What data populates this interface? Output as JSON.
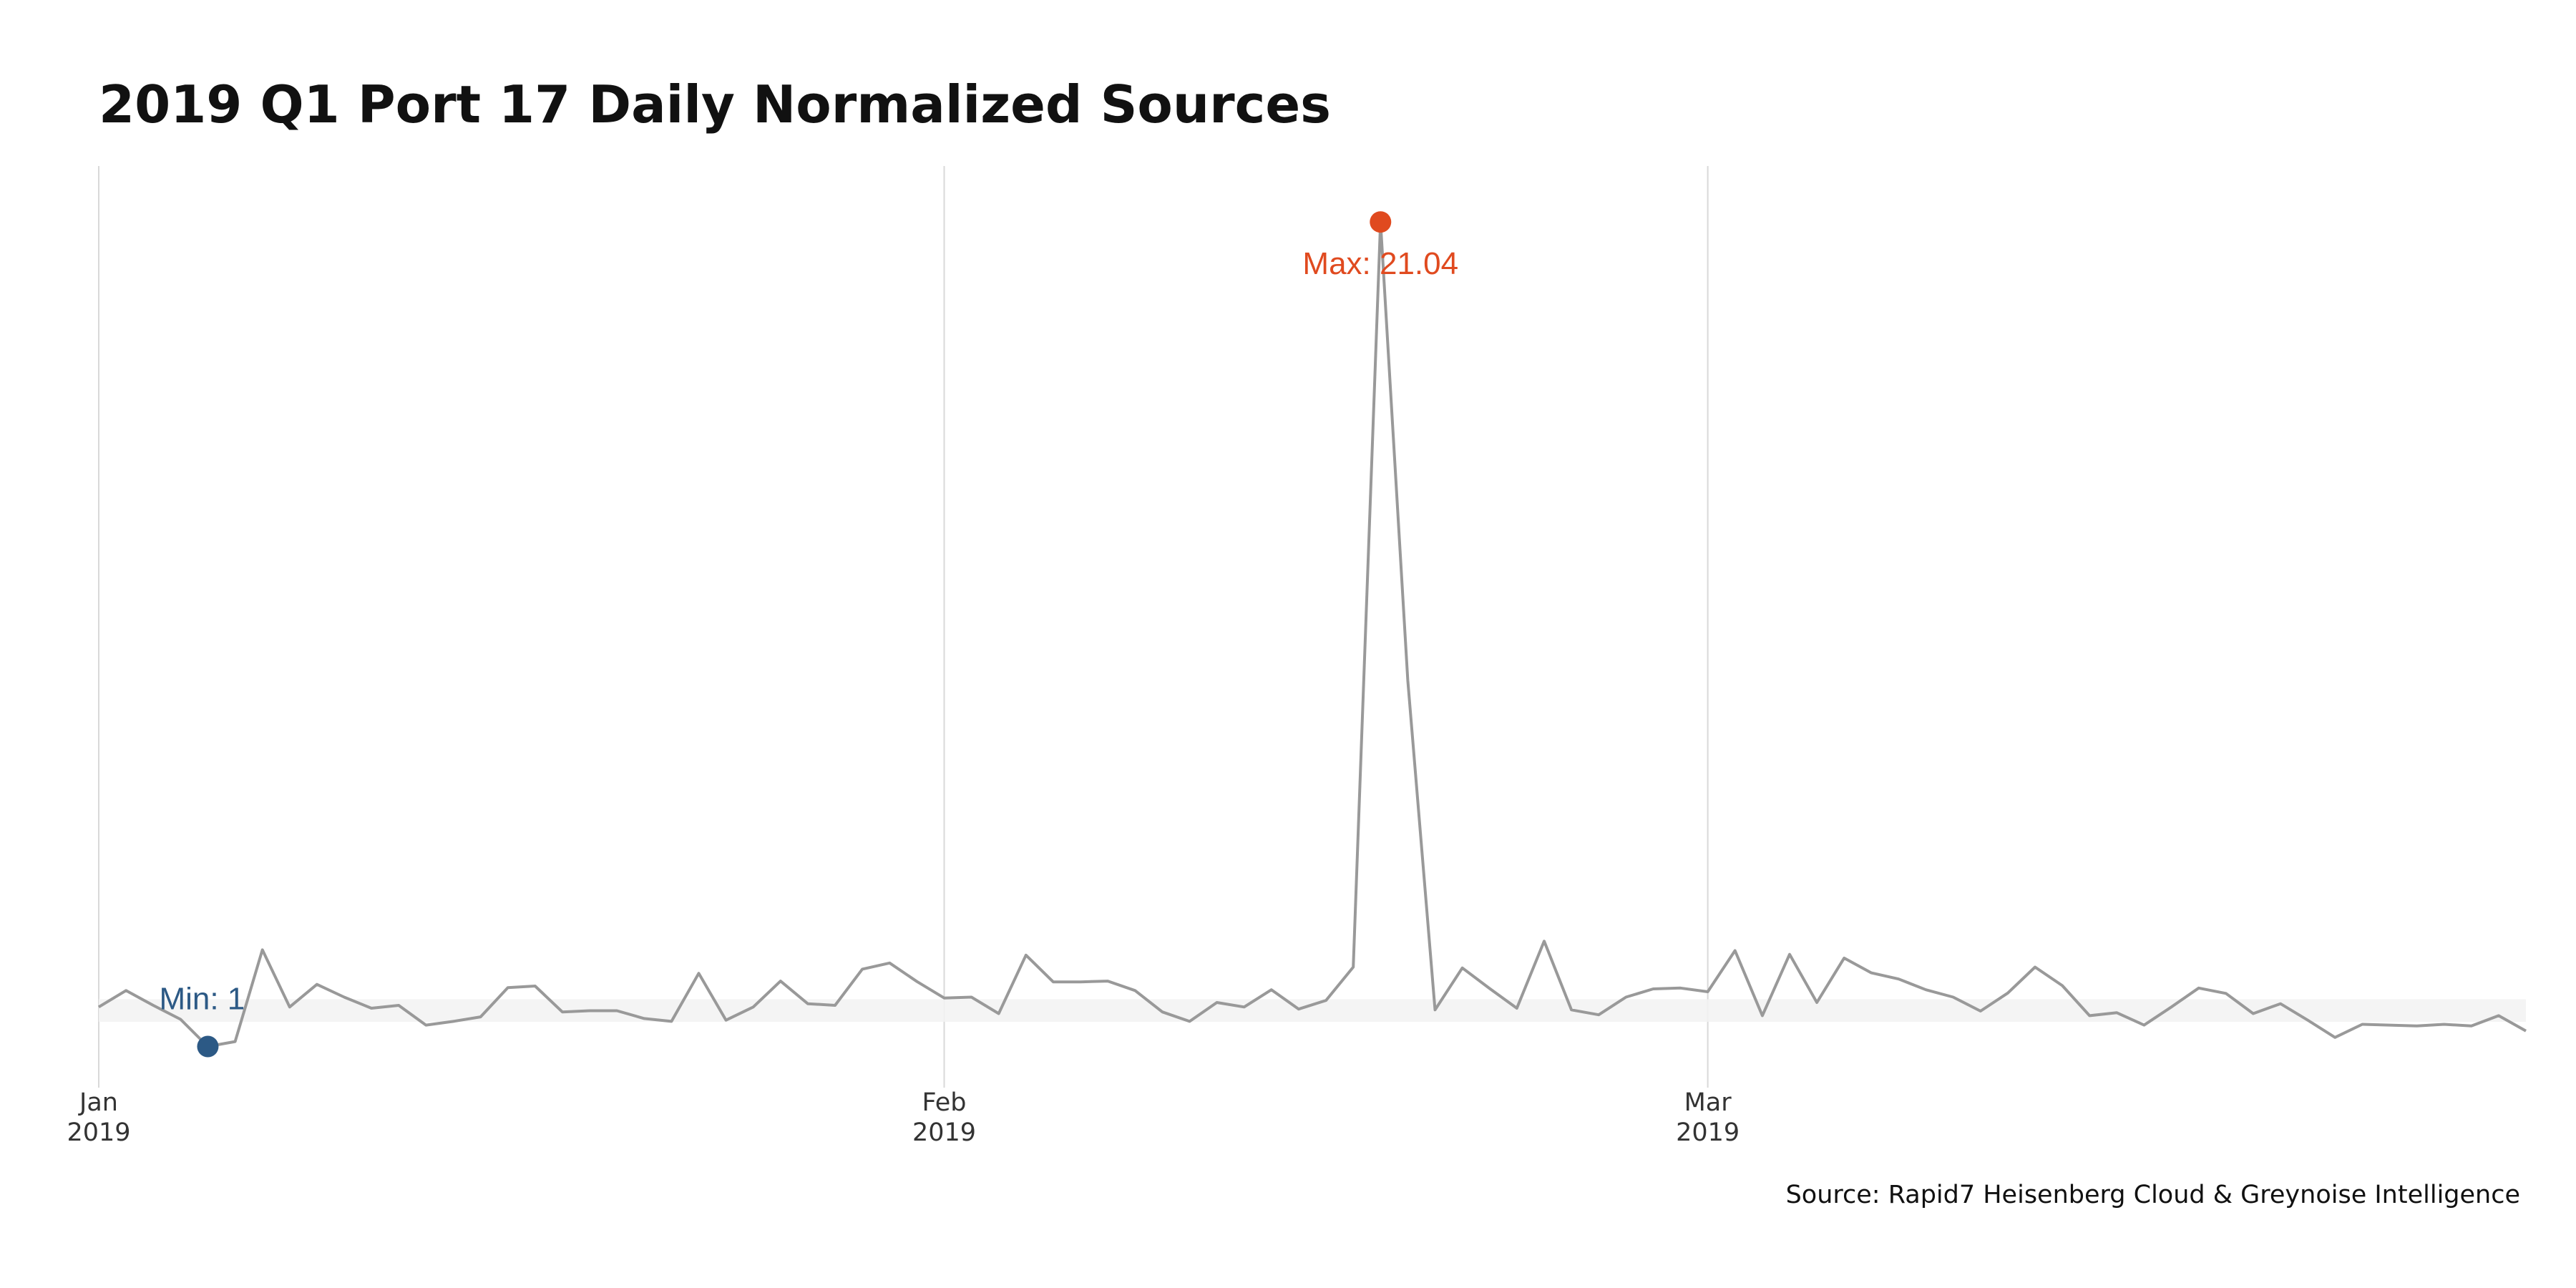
{
  "chart_data": {
    "type": "line",
    "title": "2019 Q1 Port 17 Daily Normalized Sources",
    "caption": "Source: Rapid7 Heisenberg Cloud & Greynoise Intelligence",
    "xlabel": "",
    "ylabel": "",
    "x_start": "2019-01-01",
    "x_end": "2019-03-31",
    "xlim": [
      "2019-01-01",
      "2019-03-31"
    ],
    "ylim": [
      0.0,
      22.4
    ],
    "x_ticks": [
      {
        "date": "2019-01-01",
        "month": "Jan",
        "year": "2019"
      },
      {
        "date": "2019-02-01",
        "month": "Feb",
        "year": "2019"
      },
      {
        "date": "2019-03-01",
        "month": "Mar",
        "year": "2019"
      }
    ],
    "band": [
      1.6,
      2.15
    ],
    "grid": {
      "vertical": true,
      "horizontal": false
    },
    "line_color": "#999999",
    "min_color": "#2C5985",
    "max_color": "#E04A1F",
    "min": {
      "date": "2019-01-05",
      "value": 1.0,
      "label": "Min: 1"
    },
    "max": {
      "date": "2019-02-17",
      "value": 21.04,
      "label": "Max: 21.04"
    },
    "series": [
      {
        "values": [
          1.96,
          2.36,
          2.0,
          1.66,
          1.0,
          1.12,
          3.35,
          1.96,
          2.51,
          2.2,
          1.93,
          2.0,
          1.52,
          1.61,
          1.72,
          2.43,
          2.47,
          1.84,
          1.87,
          1.87,
          1.68,
          1.61,
          2.78,
          1.64,
          1.96,
          2.59,
          2.04,
          2.0,
          2.88,
          3.03,
          2.58,
          2.18,
          2.2,
          1.8,
          3.22,
          2.57,
          2.57,
          2.59,
          2.36,
          1.84,
          1.61,
          2.07,
          1.96,
          2.38,
          1.91,
          2.12,
          2.93,
          21.04,
          9.9,
          1.89,
          2.91,
          2.41,
          1.93,
          3.56,
          1.89,
          1.77,
          2.2,
          2.4,
          2.42,
          2.33,
          3.33,
          1.75,
          3.24,
          2.07,
          3.15,
          2.79,
          2.64,
          2.38,
          2.2,
          1.86,
          2.3,
          2.93,
          2.48,
          1.75,
          1.82,
          1.52,
          1.96,
          2.42,
          2.29,
          1.8,
          2.04,
          1.64,
          1.22,
          1.54,
          1.52,
          1.5,
          1.54,
          1.5,
          1.75,
          1.38
        ]
      }
    ]
  }
}
